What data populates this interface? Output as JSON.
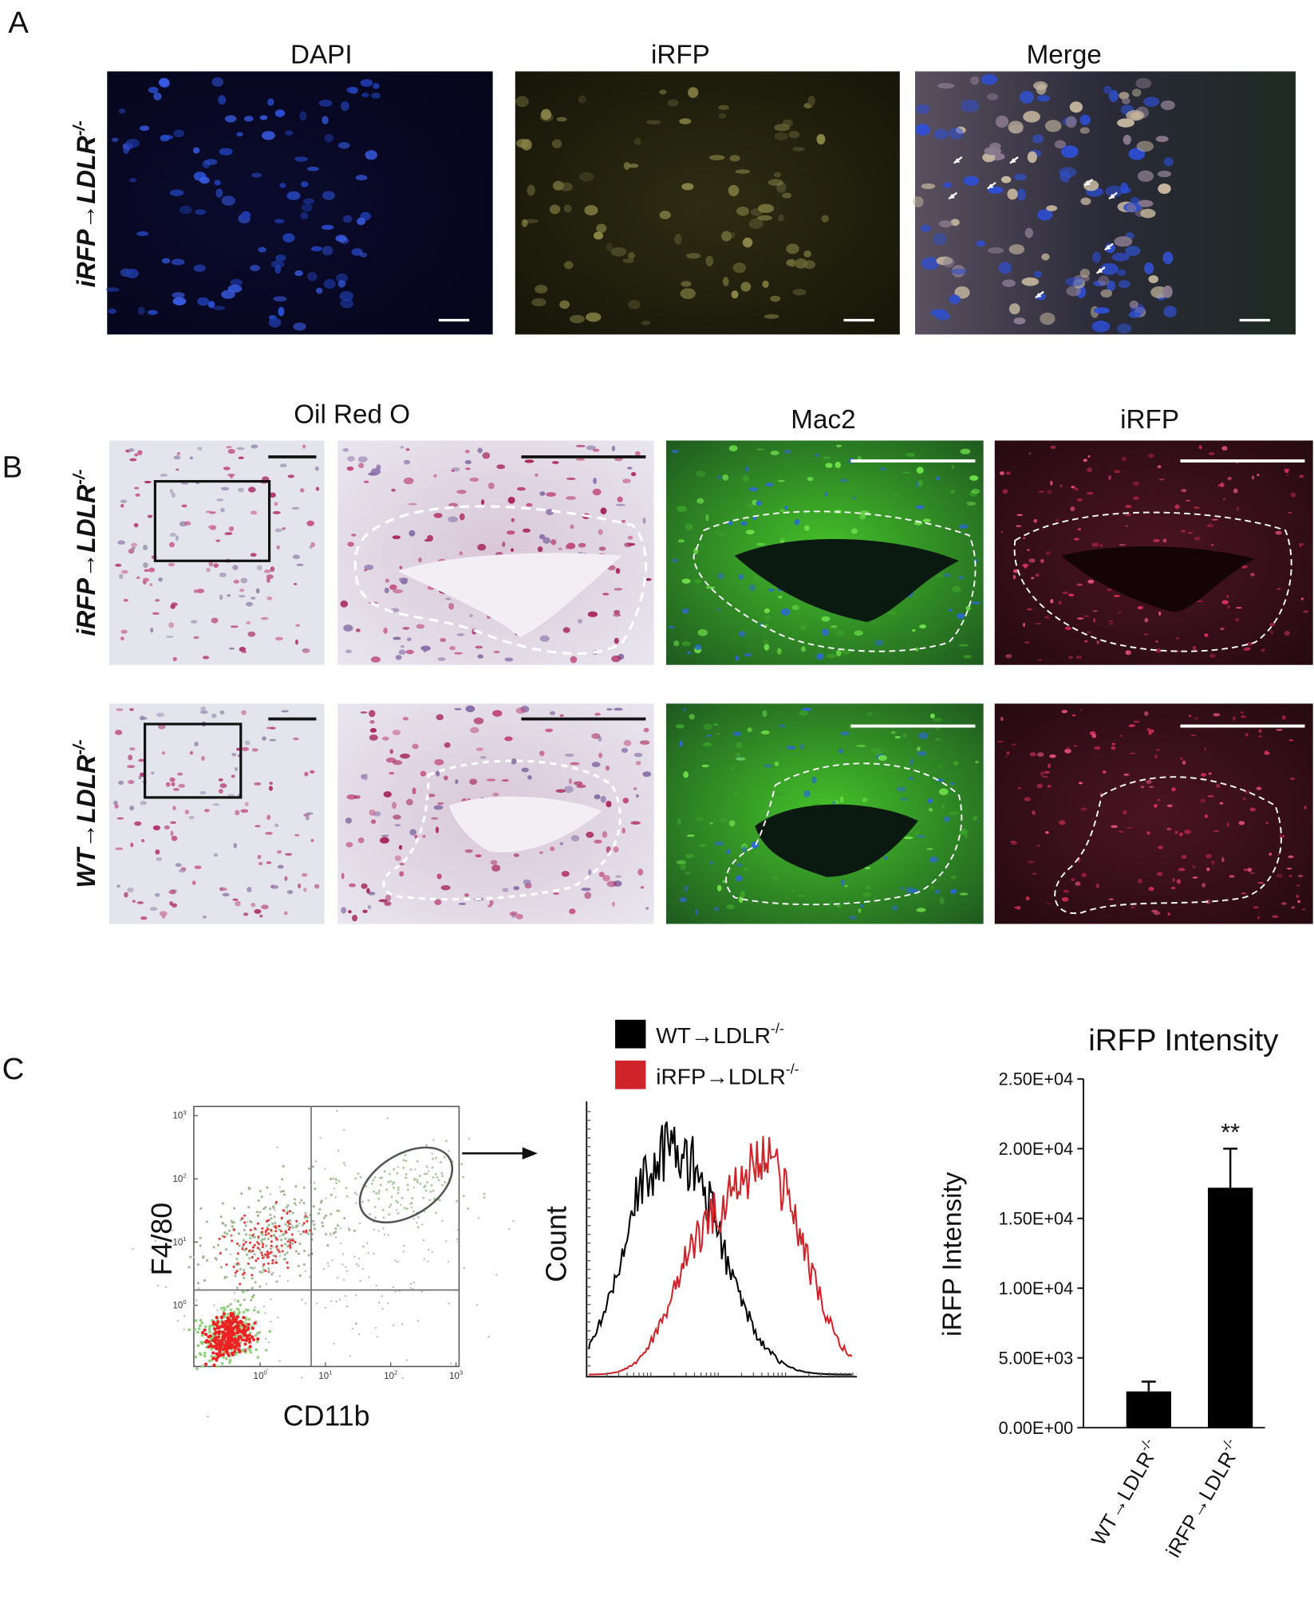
{
  "panel_a": {
    "label": "A",
    "row_label": {
      "base": "iRFP→LDLR",
      "sup": "-/-"
    },
    "columns": [
      "DAPI",
      "iRFP",
      "Merge"
    ]
  },
  "panel_b": {
    "label": "B",
    "columns": [
      "Oil Red O",
      "Mac2",
      "iRFP"
    ],
    "rows": [
      {
        "base": "iRFP→LDLR",
        "sup": "-/-"
      },
      {
        "base": "WT→LDLR",
        "sup": "-/-"
      }
    ]
  },
  "panel_c": {
    "label": "C",
    "flow": {
      "y_label": "F4/80",
      "x_label": "CD11b",
      "xticks": [
        {
          "base": "10",
          "exp": "0"
        },
        {
          "base": "10",
          "exp": "1"
        },
        {
          "base": "10",
          "exp": "2"
        },
        {
          "base": "10",
          "exp": "3"
        }
      ],
      "yticks": [
        {
          "base": "10",
          "exp": "0"
        },
        {
          "base": "10",
          "exp": "1"
        },
        {
          "base": "10",
          "exp": "2"
        },
        {
          "base": "10",
          "exp": "3"
        }
      ]
    },
    "histogram": {
      "y_label": "Count",
      "legend": [
        {
          "name": {
            "base": "WT→LDLR",
            "sup": "-/-"
          },
          "color": "#000000"
        },
        {
          "name": {
            "base": "iRFP→LDLR",
            "sup": "-/-"
          },
          "color": "#d0242b"
        }
      ]
    }
  },
  "chart_data": {
    "type": "bar",
    "title": "iRFP Intensity",
    "y_label": "iRFP Intensity",
    "categories": [
      {
        "base": "WT→LDLR",
        "sup": "-/-"
      },
      {
        "base": "iRFP→LDLR",
        "sup": "-/-"
      }
    ],
    "values": [
      2600,
      17200
    ],
    "errors": [
      700,
      2800
    ],
    "color": "#000000",
    "ylim": [
      0,
      25000
    ],
    "yticks": [
      {
        "value": 0,
        "label": "0.00E+00"
      },
      {
        "value": 5000,
        "label": "5.00E+03"
      },
      {
        "value": 10000,
        "label": "1.00E+04"
      },
      {
        "value": 15000,
        "label": "1.50E+04"
      },
      {
        "value": 20000,
        "label": "2.00E+04"
      },
      {
        "value": 25000,
        "label": "2.50E+04"
      }
    ],
    "annotation": "**"
  }
}
